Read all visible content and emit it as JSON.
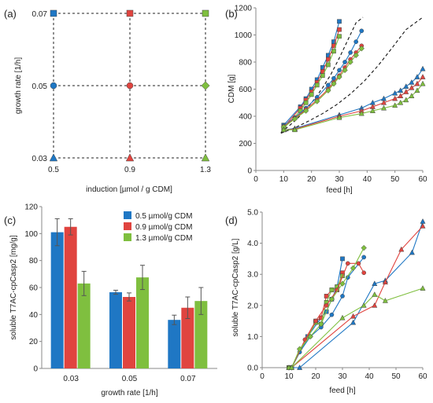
{
  "colors": {
    "blue": "#1f77c4",
    "red": "#e0443f",
    "green": "#7fbf3f",
    "dark": "#333333"
  },
  "chart_data": [
    {
      "panel": "(a)",
      "type": "scatter",
      "xlabel": "induction [µmol / g CDM]",
      "ylabel": "growth rate [1/h]",
      "x_ticks": [
        "0.5",
        "0.9",
        "1.3"
      ],
      "y_ticks": [
        "0.03",
        "0.05",
        "0.07"
      ],
      "grid": "dashed",
      "points": [
        {
          "x": "0.5",
          "y": "0.07",
          "color": "blue",
          "marker": "square"
        },
        {
          "x": "0.9",
          "y": "0.07",
          "color": "red",
          "marker": "square"
        },
        {
          "x": "1.3",
          "y": "0.07",
          "color": "green",
          "marker": "square"
        },
        {
          "x": "0.5",
          "y": "0.05",
          "color": "blue",
          "marker": "circle"
        },
        {
          "x": "0.9",
          "y": "0.05",
          "color": "red",
          "marker": "circle"
        },
        {
          "x": "1.3",
          "y": "0.05",
          "color": "green",
          "marker": "diamond"
        },
        {
          "x": "0.5",
          "y": "0.03",
          "color": "blue",
          "marker": "triangle"
        },
        {
          "x": "0.9",
          "y": "0.03",
          "color": "red",
          "marker": "triangle"
        },
        {
          "x": "1.3",
          "y": "0.03",
          "color": "green",
          "marker": "triangle"
        }
      ]
    },
    {
      "panel": "(b)",
      "type": "line",
      "xlabel": "feed [h]",
      "ylabel": "CDM [g]",
      "xlim": [
        0,
        60
      ],
      "ylim": [
        0,
        1200
      ],
      "x_ticks": [
        0,
        10,
        20,
        30,
        40,
        50,
        60
      ],
      "y_ticks": [
        0,
        200,
        400,
        600,
        800,
        1000,
        1200
      ],
      "series": [
        {
          "color": "blue",
          "marker": "square",
          "x": [
            10,
            16,
            18,
            20,
            22,
            24,
            26,
            28,
            30
          ],
          "y": [
            335,
            470,
            530,
            600,
            670,
            760,
            850,
            950,
            1100
          ]
        },
        {
          "color": "red",
          "marker": "square",
          "x": [
            10,
            16,
            18,
            20,
            22,
            24,
            26,
            28,
            30
          ],
          "y": [
            320,
            460,
            520,
            580,
            650,
            730,
            820,
            920,
            1040
          ]
        },
        {
          "color": "green",
          "marker": "square",
          "x": [
            10,
            16,
            18,
            20,
            22,
            24,
            26,
            28,
            30
          ],
          "y": [
            310,
            440,
            500,
            560,
            630,
            700,
            780,
            880,
            990
          ]
        },
        {
          "color": "blue",
          "marker": "circle",
          "x": [
            10,
            14,
            18,
            22,
            26,
            28,
            30,
            32,
            34,
            36,
            38
          ],
          "y": [
            330,
            390,
            460,
            540,
            630,
            680,
            740,
            800,
            870,
            950,
            1030
          ]
        },
        {
          "color": "red",
          "marker": "circle",
          "x": [
            10,
            14,
            18,
            22,
            26,
            28,
            30,
            32,
            34,
            36,
            38
          ],
          "y": [
            325,
            385,
            450,
            520,
            600,
            650,
            700,
            760,
            820,
            870,
            920
          ]
        },
        {
          "color": "green",
          "marker": "diamond",
          "x": [
            10,
            14,
            18,
            22,
            26,
            28,
            30,
            32,
            34,
            36,
            38
          ],
          "y": [
            320,
            380,
            440,
            510,
            590,
            640,
            690,
            740,
            800,
            850,
            900
          ]
        },
        {
          "color": "blue",
          "marker": "triangle",
          "x": [
            10,
            14,
            30,
            38,
            42,
            46,
            50,
            52,
            54,
            56,
            58,
            60
          ],
          "y": [
            300,
            310,
            410,
            460,
            500,
            530,
            570,
            590,
            620,
            650,
            690,
            750
          ]
        },
        {
          "color": "red",
          "marker": "triangle",
          "x": [
            10,
            14,
            30,
            38,
            42,
            46,
            50,
            52,
            54,
            56,
            58,
            60
          ],
          "y": [
            300,
            305,
            400,
            440,
            470,
            500,
            530,
            550,
            580,
            610,
            640,
            690
          ]
        },
        {
          "color": "green",
          "marker": "triangle",
          "x": [
            10,
            14,
            30,
            38,
            42,
            46,
            50,
            52,
            54,
            56,
            58,
            60
          ],
          "y": [
            300,
            300,
            390,
            420,
            440,
            460,
            480,
            500,
            520,
            550,
            590,
            640
          ]
        }
      ],
      "reference_curves_dashed": [
        {
          "x": [
            9,
            12,
            15,
            18,
            21,
            24,
            27,
            30,
            33,
            36,
            38.5
          ],
          "y": [
            280,
            330,
            385,
            450,
            525,
            610,
            710,
            830,
            960,
            1090,
            1130
          ]
        },
        {
          "x": [
            9,
            14,
            19,
            24,
            29,
            34,
            39,
            44,
            49,
            54,
            60
          ],
          "y": [
            275,
            315,
            365,
            420,
            485,
            565,
            660,
            775,
            905,
            1040,
            1130
          ]
        }
      ]
    },
    {
      "panel": "(c)",
      "type": "bar",
      "xlabel": "growth rate [1/h]",
      "ylabel": "soluble T7AC-cpCasp2 [mg/g]",
      "ylim": [
        0,
        120
      ],
      "y_ticks": [
        0,
        20,
        40,
        60,
        80,
        100,
        120
      ],
      "categories": [
        "0.03",
        "0.05",
        "0.07"
      ],
      "series": [
        {
          "name": "0.5 µmol/g CDM",
          "color": "blue",
          "values": [
            101,
            56.5,
            36
          ],
          "errors": [
            10,
            1.5,
            3.5
          ]
        },
        {
          "name": "0.9 µmol/g CDM",
          "color": "red",
          "values": [
            105,
            53,
            45
          ],
          "errors": [
            6,
            3,
            8
          ]
        },
        {
          "name": "1.3 µmol/g CDM",
          "color": "green",
          "values": [
            63,
            67.5,
            50
          ],
          "errors": [
            9,
            9,
            10
          ]
        }
      ],
      "legend": "top-right"
    },
    {
      "panel": "(d)",
      "type": "line",
      "xlabel": "feed [h]",
      "ylabel": "soluble T7AC-cpCasp2 [g/L]",
      "xlim": [
        0,
        60
      ],
      "ylim": [
        0,
        5
      ],
      "x_ticks": [
        0,
        10,
        20,
        30,
        40,
        50,
        60
      ],
      "y_ticks": [
        "0.0",
        "1.0",
        "2.0",
        "3.0",
        "4.0",
        "5.0"
      ],
      "series": [
        {
          "color": "blue",
          "marker": "square",
          "x": [
            10,
            11,
            17,
            22,
            24,
            26,
            28,
            30
          ],
          "y": [
            0,
            0,
            1,
            1.6,
            1.8,
            2.2,
            2.6,
            3.5
          ]
        },
        {
          "color": "red",
          "marker": "square",
          "x": [
            10,
            11,
            20,
            22,
            24,
            26,
            28,
            30
          ],
          "y": [
            0,
            0,
            1.5,
            1.6,
            2.3,
            2.5,
            2.5,
            3.05
          ]
        },
        {
          "color": "green",
          "marker": "square",
          "x": [
            10,
            11,
            20,
            22,
            24,
            26,
            28,
            30
          ],
          "y": [
            0,
            0,
            1.45,
            1.4,
            2.1,
            2.5,
            2.6,
            2.95
          ]
        },
        {
          "color": "blue",
          "marker": "circle",
          "x": [
            10,
            11,
            14,
            18,
            22,
            26,
            30,
            32,
            38
          ],
          "y": [
            0,
            0,
            0.5,
            1.0,
            1.3,
            1.7,
            2.3,
            2.9,
            3.55
          ]
        },
        {
          "color": "red",
          "marker": "circle",
          "x": [
            10,
            11,
            16,
            20,
            24,
            28,
            32,
            36,
            38
          ],
          "y": [
            0,
            0,
            0.9,
            1.5,
            2.0,
            2.5,
            3.35,
            3.35,
            3.05
          ]
        },
        {
          "color": "green",
          "marker": "diamond",
          "x": [
            10,
            11,
            14,
            18,
            22,
            26,
            30,
            34,
            38
          ],
          "y": [
            0,
            0,
            0.6,
            1.0,
            1.4,
            2.2,
            2.7,
            3.2,
            3.85
          ]
        },
        {
          "color": "blue",
          "marker": "triangle",
          "x": [
            10,
            14,
            34,
            42,
            46,
            56,
            60
          ],
          "y": [
            0,
            0,
            1.45,
            2.7,
            2.8,
            3.7,
            4.7
          ]
        },
        {
          "color": "red",
          "marker": "triangle",
          "x": [
            10,
            11,
            34,
            42,
            46,
            52,
            60
          ],
          "y": [
            0,
            0,
            1.65,
            2.0,
            2.75,
            3.8,
            4.55
          ]
        },
        {
          "color": "green",
          "marker": "triangle",
          "x": [
            10,
            11,
            30,
            38,
            42,
            46,
            60
          ],
          "y": [
            0,
            0,
            1.6,
            2.0,
            2.35,
            2.15,
            2.55
          ]
        }
      ]
    }
  ]
}
